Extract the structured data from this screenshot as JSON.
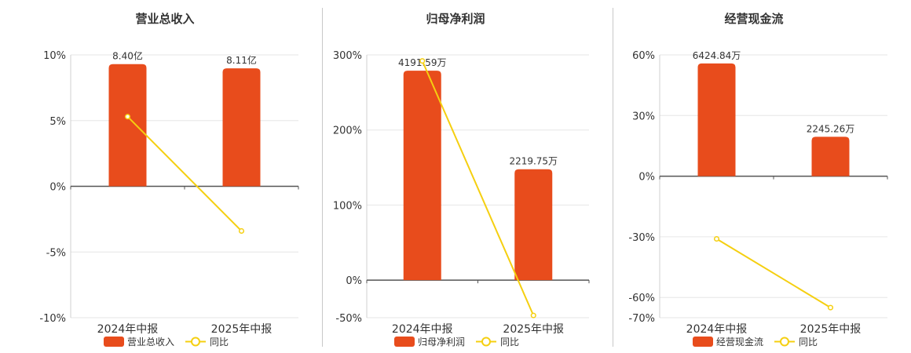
{
  "chart_data": [
    {
      "type": "bar+line",
      "title": "营业总收入",
      "categories": [
        "2024年中报",
        "2025年中报"
      ],
      "bar_series": {
        "name": "营业总收入",
        "values": [
          8.4,
          8.11
        ],
        "unit": "亿",
        "labels": [
          "8.40亿",
          "8.11亿"
        ]
      },
      "line_series": {
        "name": "同比",
        "values": [
          5.3,
          -3.4
        ]
      },
      "y_ticks": [
        "10%",
        "5%",
        "0%",
        "-5%",
        "-10%"
      ],
      "ylim": [
        -10,
        10
      ]
    },
    {
      "type": "bar+line",
      "title": "归母净利润",
      "categories": [
        "2024年中报",
        "2025年中报"
      ],
      "bar_series": {
        "name": "归母净利润",
        "values": [
          4191.59,
          2219.75
        ],
        "unit": "万",
        "labels": [
          "4191.59万",
          "2219.75万"
        ]
      },
      "line_series": {
        "name": "同比",
        "values": [
          292,
          -47
        ]
      },
      "y_ticks": [
        "300%",
        "200%",
        "100%",
        "0%",
        "-50%"
      ],
      "ylim": [
        -50,
        300
      ]
    },
    {
      "type": "bar+line",
      "title": "经营现金流",
      "categories": [
        "2024年中报",
        "2025年中报"
      ],
      "bar_series": {
        "name": "经营现金流",
        "values": [
          6424.84,
          2245.26
        ],
        "unit": "万",
        "labels": [
          "6424.84万",
          "2245.26万"
        ]
      },
      "line_series": {
        "name": "同比",
        "values": [
          -31,
          -65
        ]
      },
      "y_ticks": [
        "60%",
        "30%",
        "0%",
        "-30%",
        "-60%",
        "-70%"
      ],
      "ylim": [
        -70,
        60
      ]
    }
  ],
  "colors": {
    "bar": "#e84c1c",
    "line": "#f5cf10",
    "grid": "#e6e6e6",
    "axis": "#555555",
    "text": "#333333"
  }
}
